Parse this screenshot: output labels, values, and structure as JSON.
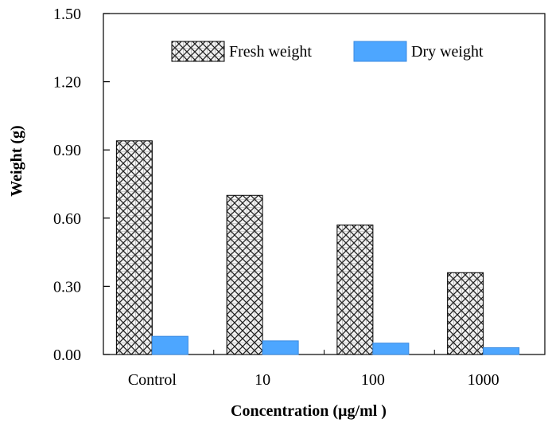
{
  "chart_data": {
    "type": "bar",
    "categories": [
      "Control",
      "10",
      "100",
      "1000"
    ],
    "series": [
      {
        "name": "Fresh weight",
        "values": [
          0.94,
          0.7,
          0.57,
          0.36
        ],
        "pattern": "crosshatch"
      },
      {
        "name": "Dry weight",
        "values": [
          0.08,
          0.06,
          0.05,
          0.03
        ],
        "color": "#4da6ff"
      }
    ],
    "xlabel": "Concentration (µg/ml )",
    "ylabel": "Weight (g)",
    "ylim": [
      0,
      1.5
    ],
    "yticks": [
      "0.00",
      "0.30",
      "0.60",
      "0.90",
      "1.20",
      "1.50"
    ],
    "grid": false,
    "legend_position": "top"
  }
}
